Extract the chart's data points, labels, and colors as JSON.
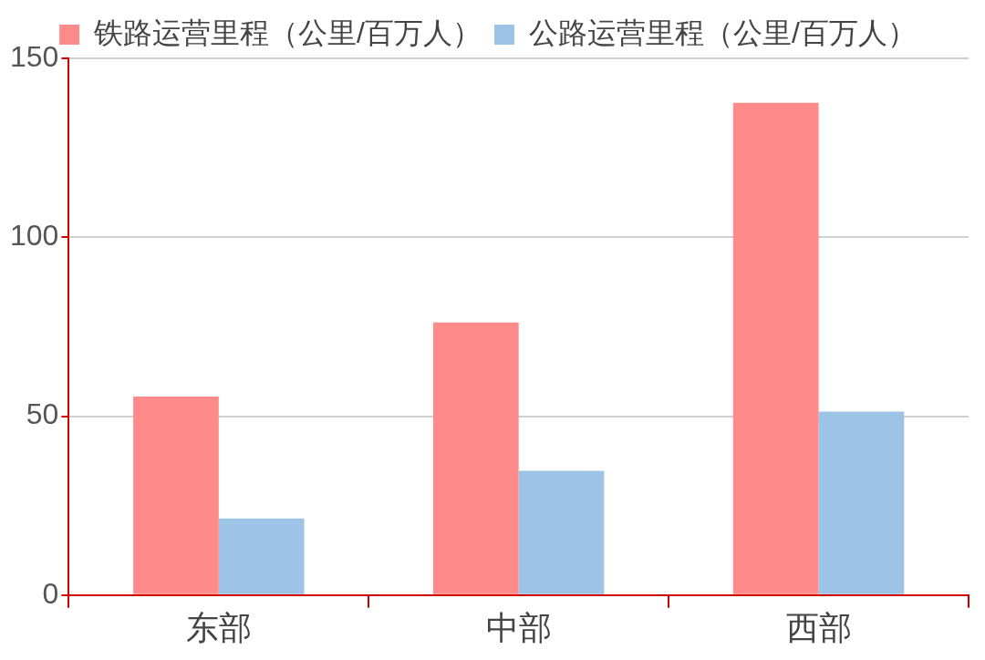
{
  "chart_data": {
    "type": "bar",
    "categories": [
      "东部",
      "中部",
      "西部"
    ],
    "series": [
      {
        "name": "铁路运营里程（公里/百万人）",
        "color": "#ff8a8a",
        "values": [
          55.5,
          76.2,
          137.6
        ]
      },
      {
        "name": "公路运营里程（公里/百万人）",
        "color": "#9dc3e6",
        "values": [
          21.4,
          34.7,
          51.3
        ]
      }
    ],
    "ylim": [
      0,
      150
    ],
    "yticks": [
      0,
      50,
      100,
      150
    ],
    "grid": "y",
    "legend": "top"
  }
}
